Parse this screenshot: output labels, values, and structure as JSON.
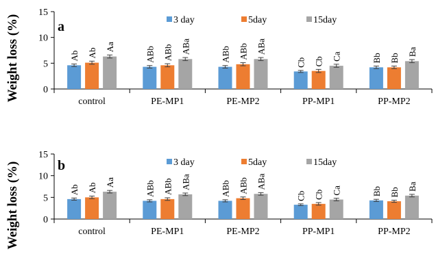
{
  "colors": {
    "3 day": "#5b9bd5",
    "5day": "#ed7d31",
    "15day": "#a5a5a5",
    "axis": "#000000",
    "errorbar": "#404040"
  },
  "chart_data": [
    {
      "type": "bar",
      "panel": "a",
      "ylabel": "Weight loss (%)",
      "ylim": [
        0,
        15
      ],
      "yticks": [
        0,
        5,
        10,
        15
      ],
      "legend_position": "top-center",
      "categories": [
        "control",
        "PE-MP1",
        "PE-MP2",
        "PP-MP1",
        "PP-MP2"
      ],
      "series": [
        {
          "name": "3 day",
          "values": [
            4.6,
            4.3,
            4.3,
            3.4,
            4.2
          ],
          "errors": [
            0.25,
            0.25,
            0.25,
            0.2,
            0.25
          ],
          "labels": [
            "Ab",
            "ABb",
            "ABb",
            "Cb",
            "Bb"
          ]
        },
        {
          "name": "5day",
          "values": [
            5.1,
            4.6,
            4.8,
            3.5,
            4.2
          ],
          "errors": [
            0.3,
            0.3,
            0.3,
            0.3,
            0.25
          ],
          "labels": [
            "Ab",
            "ABb",
            "ABb",
            "Cb",
            "Bb"
          ]
        },
        {
          "name": "15day",
          "values": [
            6.3,
            5.8,
            5.8,
            4.5,
            5.4
          ],
          "errors": [
            0.3,
            0.3,
            0.3,
            0.3,
            0.3
          ],
          "labels": [
            "Aa",
            "ABa",
            "ABa",
            "Ca",
            "Ba"
          ]
        }
      ]
    },
    {
      "type": "bar",
      "panel": "b",
      "ylabel": "Weight loss (%)",
      "ylim": [
        0,
        15
      ],
      "yticks": [
        0,
        5,
        10,
        15
      ],
      "legend_position": "top-center",
      "categories": [
        "control",
        "PE-MP1",
        "PE-MP2",
        "PP-MP1",
        "PP-MP2"
      ],
      "series": [
        {
          "name": "3 day",
          "values": [
            4.6,
            4.2,
            4.2,
            3.3,
            4.3
          ],
          "errors": [
            0.25,
            0.25,
            0.25,
            0.2,
            0.25
          ],
          "labels": [
            "Ab",
            "ABb",
            "ABb",
            "Cb",
            "Bb"
          ]
        },
        {
          "name": "5day",
          "values": [
            5.0,
            4.6,
            4.8,
            3.5,
            4.1
          ],
          "errors": [
            0.3,
            0.3,
            0.3,
            0.3,
            0.25
          ],
          "labels": [
            "Ab",
            "ABb",
            "ABb",
            "Cb",
            "Bb"
          ]
        },
        {
          "name": "15day",
          "values": [
            6.3,
            5.7,
            5.8,
            4.5,
            5.4
          ],
          "errors": [
            0.3,
            0.3,
            0.3,
            0.3,
            0.3
          ],
          "labels": [
            "Aa",
            "ABa",
            "ABa",
            "Ca",
            "Ba"
          ]
        }
      ]
    }
  ]
}
